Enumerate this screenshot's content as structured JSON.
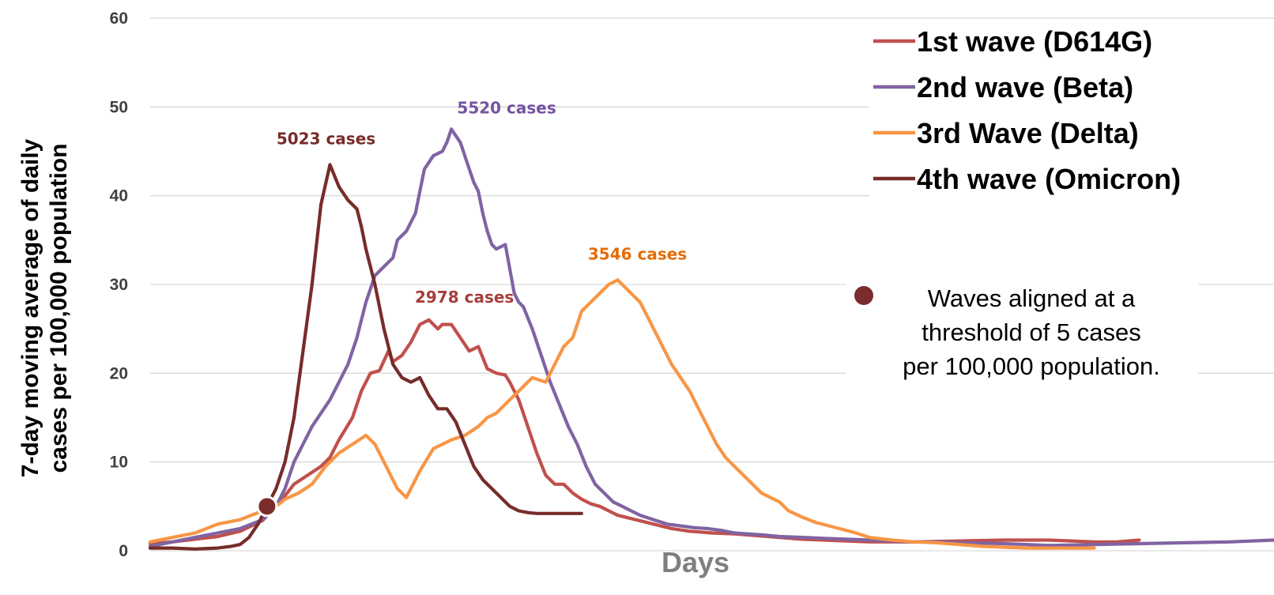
{
  "chart_data": {
    "type": "line",
    "xlabel": "Days",
    "ylabel_lines": [
      "7-day moving  average of daily",
      "cases per 100,000 population"
    ],
    "ylim": [
      0,
      60
    ],
    "yticks": [
      "0",
      "10",
      "20",
      "30",
      "40",
      "50",
      "60"
    ],
    "xlim": [
      0,
      250
    ],
    "x_tick_labels": false,
    "grid": "horizontal",
    "legend_position": "top-right",
    "series": [
      {
        "name": "1st wave (D614G)",
        "color": "#c0504d",
        "peak_label": "2978 cases",
        "x": [
          0,
          5,
          10,
          15,
          20,
          25,
          28,
          30,
          32,
          35,
          38,
          40,
          42,
          45,
          47,
          49,
          51,
          53,
          54,
          56,
          58,
          60,
          62,
          64,
          65,
          67,
          69,
          71,
          73,
          75,
          77,
          79,
          80,
          82,
          84,
          86,
          88,
          90,
          92,
          94,
          96,
          98,
          100,
          104,
          108,
          112,
          116,
          120,
          125,
          130,
          135,
          140,
          145,
          150,
          155,
          160,
          170,
          180,
          190,
          200,
          210,
          215,
          220
        ],
        "values": [
          0.8,
          1.0,
          1.3,
          1.6,
          2.2,
          3.4,
          5.0,
          6.2,
          7.5,
          8.5,
          9.5,
          10.5,
          12.5,
          15.0,
          18.0,
          20.0,
          20.3,
          22.5,
          21.3,
          22.0,
          23.5,
          25.5,
          26.0,
          25.0,
          25.5,
          25.5,
          24.0,
          22.5,
          23.0,
          20.5,
          20.0,
          19.8,
          19.0,
          17.0,
          14.0,
          11.0,
          8.5,
          7.5,
          7.5,
          6.5,
          5.8,
          5.3,
          5.0,
          4.0,
          3.5,
          3.0,
          2.5,
          2.2,
          2.0,
          1.9,
          1.7,
          1.5,
          1.3,
          1.2,
          1.1,
          1.0,
          1.0,
          1.1,
          1.2,
          1.2,
          1.0,
          1.0,
          1.2
        ]
      },
      {
        "name": "2nd wave (Beta)",
        "color": "#8064a2",
        "peak_label": "5520 cases",
        "x": [
          0,
          5,
          10,
          15,
          20,
          25,
          28,
          30,
          32,
          34,
          36,
          38,
          40,
          42,
          44,
          46,
          48,
          50,
          52,
          54,
          55,
          57,
          59,
          61,
          63,
          65,
          66,
          67,
          69,
          71,
          72,
          73,
          74,
          75,
          76,
          77,
          79,
          81,
          82,
          83,
          85,
          87,
          89,
          91,
          93,
          95,
          97,
          99,
          101,
          103,
          105,
          107,
          109,
          112,
          115,
          118,
          121,
          124,
          127,
          130,
          133,
          136,
          140,
          145,
          150,
          155,
          160,
          165,
          170,
          175,
          180,
          190,
          200,
          210,
          220,
          230,
          240,
          250
        ],
        "values": [
          0.5,
          1.0,
          1.5,
          2.0,
          2.5,
          3.5,
          5.0,
          7.0,
          10.0,
          12.0,
          14.0,
          15.5,
          17.0,
          19.0,
          21.0,
          24.0,
          28.0,
          31.0,
          32.0,
          33.0,
          35.0,
          36.0,
          38.0,
          43.0,
          44.5,
          45.0,
          46.0,
          47.5,
          46.0,
          43.0,
          41.5,
          40.5,
          38.0,
          36.0,
          34.5,
          34.0,
          34.5,
          29.0,
          28.0,
          27.5,
          25.0,
          22.0,
          19.0,
          16.5,
          14.0,
          12.0,
          9.5,
          7.5,
          6.5,
          5.5,
          5.0,
          4.5,
          4.0,
          3.5,
          3.0,
          2.8,
          2.6,
          2.5,
          2.3,
          2.0,
          1.9,
          1.8,
          1.6,
          1.5,
          1.4,
          1.3,
          1.2,
          1.1,
          1.0,
          1.0,
          0.9,
          0.8,
          0.6,
          0.7,
          0.8,
          0.9,
          1.0,
          1.2
        ]
      },
      {
        "name": "3rd Wave (Delta)",
        "color": "#f79646",
        "peak_label": "3546 cases",
        "x": [
          0,
          5,
          10,
          15,
          20,
          25,
          28,
          30,
          33,
          36,
          39,
          42,
          45,
          48,
          50,
          52,
          55,
          57,
          60,
          63,
          65,
          67,
          70,
          73,
          75,
          77,
          80,
          83,
          85,
          88,
          90,
          92,
          94,
          96,
          98,
          100,
          102,
          104,
          105,
          107,
          109,
          111,
          112,
          114,
          116,
          118,
          120,
          122,
          124,
          126,
          128,
          130,
          132,
          134,
          136,
          138,
          140,
          142,
          145,
          148,
          151,
          154,
          157,
          160,
          165,
          170,
          175,
          180,
          185,
          190,
          195,
          200,
          210
        ],
        "values": [
          1.0,
          1.5,
          2.0,
          3.0,
          3.5,
          4.5,
          5.0,
          5.8,
          6.5,
          7.5,
          9.5,
          11.0,
          12.0,
          13.0,
          12.0,
          10.0,
          7.0,
          6.0,
          9.0,
          11.5,
          12.0,
          12.5,
          13.0,
          14.0,
          15.0,
          15.5,
          17.0,
          18.5,
          19.5,
          19.0,
          21.0,
          23.0,
          24.0,
          27.0,
          28.0,
          29.0,
          30.0,
          30.5,
          30.0,
          29.0,
          28.0,
          26.0,
          25.0,
          23.0,
          21.0,
          19.5,
          18.0,
          16.0,
          14.0,
          12.0,
          10.5,
          9.5,
          8.5,
          7.5,
          6.5,
          6.0,
          5.5,
          4.5,
          3.8,
          3.2,
          2.8,
          2.4,
          2.0,
          1.5,
          1.2,
          1.0,
          0.9,
          0.7,
          0.5,
          0.4,
          0.3,
          0.3,
          0.3
        ]
      },
      {
        "name": "4th wave (Omicron)",
        "color": "#772c2a",
        "peak_label": "5023 cases",
        "x": [
          0,
          5,
          10,
          15,
          18,
          20,
          22,
          24,
          26,
          28,
          30,
          32,
          34,
          36,
          38,
          40,
          42,
          44,
          46,
          47,
          48,
          50,
          52,
          54,
          56,
          58,
          60,
          62,
          64,
          66,
          68,
          70,
          72,
          74,
          76,
          78,
          80,
          82,
          84,
          86,
          88,
          90,
          92,
          94,
          96
        ],
        "values": [
          0.3,
          0.3,
          0.2,
          0.3,
          0.5,
          0.7,
          1.5,
          3.0,
          5.0,
          7.0,
          10.0,
          15.0,
          22.5,
          30.0,
          39.0,
          43.5,
          41.0,
          39.5,
          38.5,
          36.5,
          34.0,
          30.0,
          25.0,
          21.0,
          19.5,
          19.0,
          19.5,
          17.5,
          16.0,
          16.0,
          14.5,
          12.0,
          9.5,
          8.0,
          7.0,
          6.0,
          5.0,
          4.5,
          4.3,
          4.2,
          4.2,
          4.2,
          4.2,
          4.2,
          4.2
        ]
      }
    ],
    "alignment_marker": {
      "x": 26,
      "y": 5,
      "color": "#7b2c2c"
    },
    "note_lines": [
      "Waves aligned at a",
      "threshold of 5 cases",
      "per 100,000 population."
    ]
  }
}
